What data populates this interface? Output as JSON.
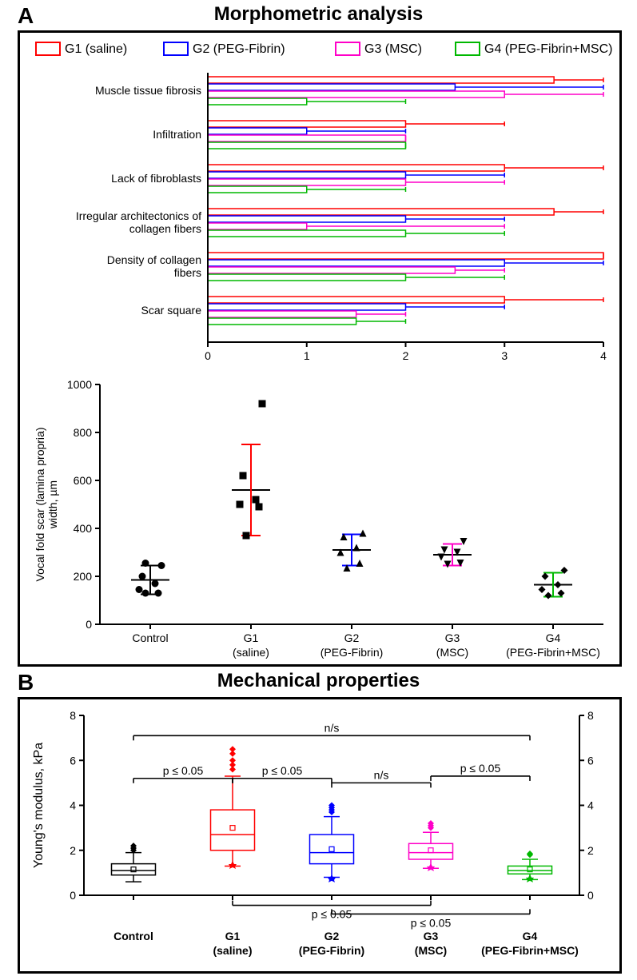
{
  "panelA": {
    "label": "A",
    "title": "Morphometric analysis",
    "legend": [
      {
        "key": "G1",
        "label": "G1 (saline)",
        "color": "#ff0000"
      },
      {
        "key": "G2",
        "label": "G2 (PEG-Fibrin)",
        "color": "#0000ff"
      },
      {
        "key": "G3",
        "label": "G3 (MSC)",
        "color": "#ff00c8"
      },
      {
        "key": "G4",
        "label": "G4 (PEG-Fibrin+MSC)",
        "color": "#00b800"
      }
    ],
    "hbar_chart": {
      "type": "grouped-horizontal-bar",
      "xlim": [
        0,
        4
      ],
      "xticks": [
        0,
        1,
        2,
        3,
        4
      ],
      "tick_fontsize": 14,
      "cat_fontsize": 14,
      "categories": [
        "Muscle tissue fibrosis",
        "Infiltration",
        "Lack of fibroblasts",
        "Irregular architectonics of collagen fibers",
        "Density of collagen fibers",
        "Scar square"
      ],
      "series": [
        {
          "name": "G1",
          "color": "#ff0000",
          "values": [
            3.5,
            2.0,
            3.0,
            3.5,
            4.0,
            3.0
          ],
          "err": [
            0.5,
            1.0,
            1.0,
            0.5,
            0.0,
            1.0
          ]
        },
        {
          "name": "G2",
          "color": "#0000ff",
          "values": [
            2.5,
            1.0,
            2.0,
            2.0,
            3.0,
            2.0
          ],
          "err": [
            1.5,
            1.0,
            1.0,
            1.0,
            1.0,
            1.0
          ]
        },
        {
          "name": "G3",
          "color": "#ff00c8",
          "values": [
            3.0,
            2.0,
            2.0,
            1.0,
            2.5,
            1.5
          ],
          "err": [
            1.0,
            0.0,
            1.0,
            2.0,
            0.5,
            0.5
          ]
        },
        {
          "name": "G4",
          "color": "#00b800",
          "values": [
            1.0,
            2.0,
            1.0,
            2.0,
            2.0,
            1.5
          ],
          "err": [
            1.0,
            0.0,
            1.0,
            1.0,
            1.0,
            0.5
          ]
        }
      ]
    },
    "scatter_chart": {
      "type": "jitter-scatter",
      "ylabel": "Vocal fold scar (lamina propria)\nwidth, µm",
      "ylabel_fontsize": 14,
      "ylim": [
        0,
        1000
      ],
      "yticks": [
        0,
        200,
        400,
        600,
        800,
        1000
      ],
      "tick_fontsize": 14,
      "groups": [
        {
          "label": "Control",
          "sub": "",
          "color": "#000000",
          "marker": "circle",
          "mean": 185,
          "sd": 60,
          "points": [
            130,
            130,
            145,
            170,
            200,
            245,
            255
          ]
        },
        {
          "label": "G1",
          "sub": "(saline)",
          "color": "#ff0000",
          "marker": "square",
          "mean": 560,
          "sd": 190,
          "points": [
            370,
            490,
            500,
            520,
            620,
            920
          ]
        },
        {
          "label": "G2",
          "sub": "(PEG-Fibrin)",
          "color": "#0000ff",
          "marker": "triangle-up",
          "mean": 310,
          "sd": 65,
          "points": [
            235,
            255,
            300,
            320,
            365,
            380
          ]
        },
        {
          "label": "G3",
          "sub": "(MSC)",
          "color": "#ff00c8",
          "marker": "triangle-down",
          "mean": 290,
          "sd": 45,
          "points": [
            250,
            255,
            280,
            300,
            310,
            345
          ]
        },
        {
          "label": "G4",
          "sub": "(PEG-Fibrin+MSC)",
          "color": "#00b800",
          "marker": "diamond",
          "mean": 165,
          "sd": 50,
          "points": [
            120,
            130,
            145,
            165,
            200,
            225
          ]
        }
      ]
    }
  },
  "panelB": {
    "label": "B",
    "title": "Mechanical properties",
    "box_chart": {
      "type": "boxplot",
      "ylabel": "Young's modulus, kPa",
      "ylabel_fontsize": 16,
      "ylim": [
        0,
        8
      ],
      "yticks": [
        0,
        2,
        4,
        6,
        8
      ],
      "yticks_right": [
        0,
        2,
        4,
        6,
        8
      ],
      "tick_fontsize": 14,
      "groups": [
        {
          "label": "Control",
          "sub": "",
          "color": "#000000",
          "q1": 0.9,
          "median": 1.1,
          "q3": 1.4,
          "mean": 1.15,
          "wlo": 0.6,
          "whi": 1.9,
          "outliers": [
            2.0,
            2.1,
            2.2
          ]
        },
        {
          "label": "G1",
          "sub": "(saline)",
          "color": "#ff0000",
          "q1": 2.0,
          "median": 2.7,
          "q3": 3.8,
          "mean": 3.0,
          "wlo": 1.3,
          "whi": 5.3,
          "outliers": [
            5.6,
            5.8,
            6.0,
            6.3,
            6.5
          ],
          "outliers_lo": [
            1.35
          ]
        },
        {
          "label": "G2",
          "sub": "(PEG-Fibrin)",
          "color": "#0000ff",
          "q1": 1.4,
          "median": 1.9,
          "q3": 2.7,
          "mean": 2.05,
          "wlo": 0.8,
          "whi": 3.5,
          "outliers": [
            3.7,
            3.8,
            3.9,
            4.0
          ],
          "outliers_lo": [
            0.75
          ]
        },
        {
          "label": "G3",
          "sub": "(MSC)",
          "color": "#ff00c8",
          "q1": 1.6,
          "median": 1.9,
          "q3": 2.3,
          "mean": 2.0,
          "wlo": 1.2,
          "whi": 2.8,
          "outliers": [
            3.0,
            3.1,
            3.2
          ],
          "outliers_lo": [
            1.25
          ]
        },
        {
          "label": "G4",
          "sub": "(PEG-Fibrin+MSC)",
          "color": "#00b800",
          "q1": 0.95,
          "median": 1.1,
          "q3": 1.3,
          "mean": 1.15,
          "wlo": 0.7,
          "whi": 1.6,
          "outliers": [
            1.8,
            1.85
          ],
          "outliers_lo": [
            0.75
          ]
        }
      ],
      "sig_brackets": [
        {
          "g1": 0,
          "g2": 1,
          "y": 5.2,
          "label": "p ≤ 0.05"
        },
        {
          "g1": 1,
          "g2": 2,
          "y": 5.2,
          "label": "p ≤ 0.05"
        },
        {
          "g1": 2,
          "g2": 3,
          "y": 5.0,
          "label": "n/s"
        },
        {
          "g1": 3,
          "g2": 4,
          "y": 5.3,
          "label": "p ≤ 0.05"
        },
        {
          "g1": 0,
          "g2": 4,
          "y": 7.1,
          "label": "n/s"
        }
      ],
      "sig_brackets_below": [
        {
          "g1": 1,
          "g2": 3,
          "y": -0.7,
          "label": "p ≤ 0.05"
        },
        {
          "g1": 2,
          "g2": 4,
          "y": -1.3,
          "label": "p ≤ 0.05"
        }
      ],
      "sig_fontsize": 14
    }
  },
  "style": {
    "background": "#ffffff",
    "axis_color": "#000000",
    "axis_width": 2,
    "box_lw": 1.5,
    "err_cap": 4
  }
}
